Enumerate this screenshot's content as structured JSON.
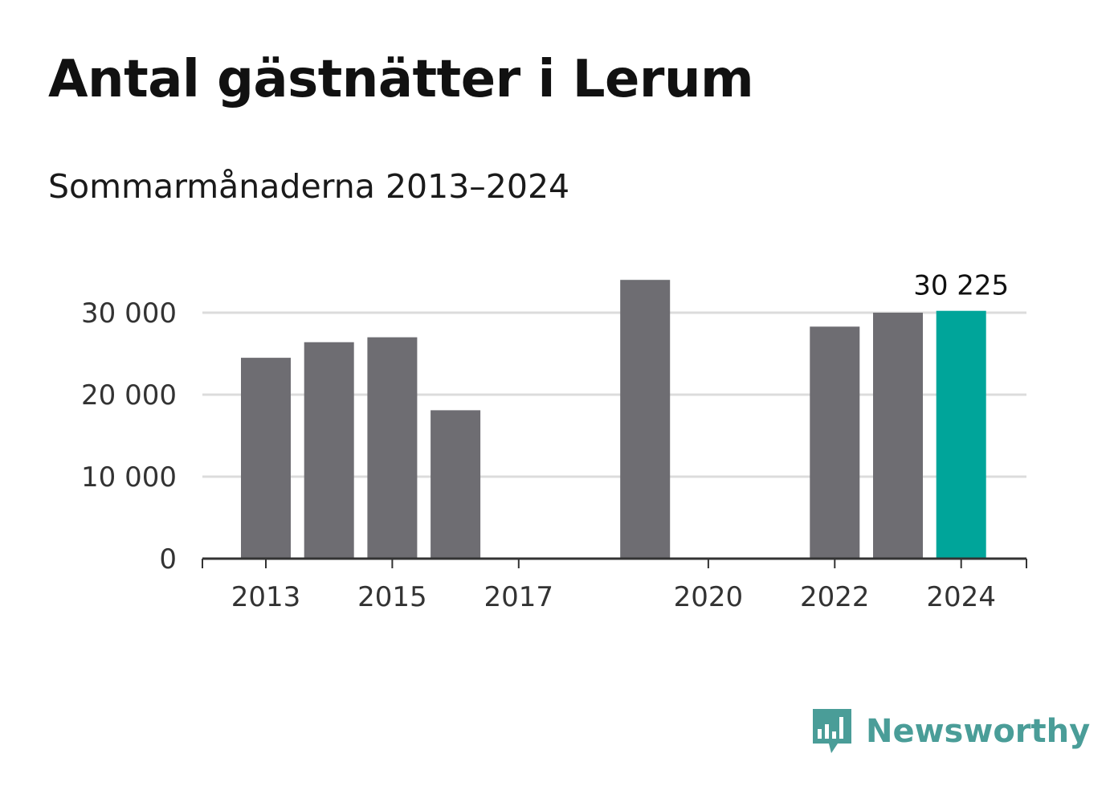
{
  "header": {
    "title": "Antal gästnätter i Lerum",
    "subtitle": "Sommarmånaderna 2013–2024"
  },
  "colors": {
    "bar": "#6e6d72",
    "highlight": "#00a59a",
    "grid": "#dcdcdc",
    "axis": "#333333",
    "brand": "#4a9d98"
  },
  "chart_data": {
    "type": "bar",
    "title": "Antal gästnätter i Lerum",
    "subtitle": "Sommarmånaderna 2013–2024",
    "categories": [
      "2013",
      "2014",
      "2015",
      "2016",
      "2017",
      "2018",
      "2019",
      "2020",
      "2021",
      "2022",
      "2023",
      "2024"
    ],
    "values": [
      24500,
      26400,
      27000,
      18100,
      null,
      null,
      34000,
      null,
      null,
      28300,
      30000,
      30225
    ],
    "highlight_index": 11,
    "data_labels": [
      {
        "index": 11,
        "text": "30 225"
      }
    ],
    "x_tick_labels": [
      "2013",
      "2015",
      "2017",
      "2020",
      "2022",
      "2024"
    ],
    "y_ticks": [
      0,
      10000,
      20000,
      30000
    ],
    "y_tick_labels": [
      "0",
      "10 000",
      "20 000",
      "30 000"
    ],
    "ylim": [
      0,
      34000
    ],
    "grid": true,
    "xlabel": "",
    "ylabel": ""
  },
  "logo": {
    "text": "Newsworthy",
    "icon": "newsworthy-logo-icon"
  }
}
